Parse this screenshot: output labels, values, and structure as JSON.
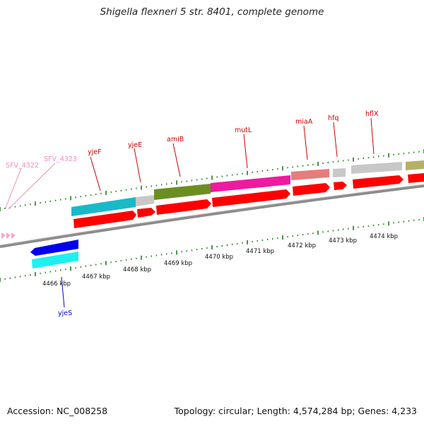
{
  "title": "Shigella flexneri 5 str. 8401, complete genome",
  "footer": {
    "accession": "Accession: NC_008258",
    "summary": "Topology: circular; Length: 4,574,284 bp; Genes: 4,233"
  },
  "colors": {
    "backbone": "#8c8c8c",
    "tick_green": "#1e7a1e",
    "cds_red": "#ff0000",
    "label_red": "#cc0000",
    "label_pink": "#f08cbe",
    "label_blue": "#0000cc",
    "arrow_blue": "#0000ee"
  },
  "ticks_upper": [
    "4466 kbp",
    "4467 kbp",
    "4468 kbp",
    "4469 kbp",
    "4470 kbp",
    "4471 kbp",
    "4472 kbp",
    "4473 kbp",
    "4474 kbp"
  ],
  "ticks_lower_labels": [
    "4466 kbp",
    "4467 kbp",
    "4468 kbp",
    "4469 kbp",
    "4470 kbp",
    "4471 kbp",
    "4472 kbp",
    "4473 kbp",
    "4474 kbp"
  ],
  "genes": [
    {
      "name": "SFV_4322",
      "color": "#f08cbe"
    },
    {
      "name": "SFV_4323",
      "color": "#f08cbe"
    },
    {
      "name": "yjeF",
      "color": "#cc0000"
    },
    {
      "name": "yjeE",
      "color": "#cc0000"
    },
    {
      "name": "amiB",
      "color": "#cc0000"
    },
    {
      "name": "mutL",
      "color": "#cc0000"
    },
    {
      "name": "miaA",
      "color": "#cc0000"
    },
    {
      "name": "hfq",
      "color": "#cc0000"
    },
    {
      "name": "hflX",
      "color": "#cc0000"
    },
    {
      "name": "yjeS",
      "color": "#0000cc"
    }
  ]
}
